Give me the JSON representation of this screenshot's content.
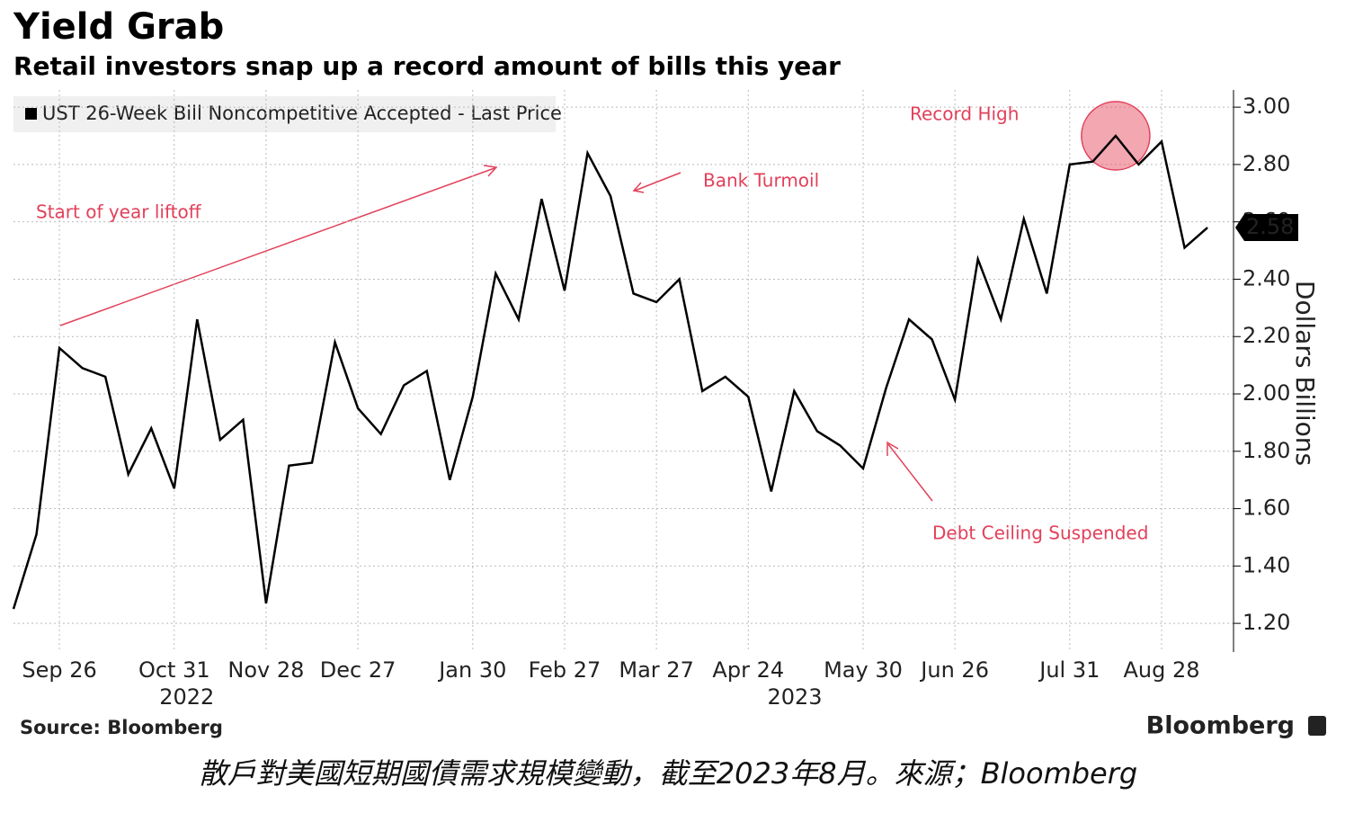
{
  "chart_data": {
    "type": "line",
    "title": "Yield Grab",
    "subtitle": "Retail investors snap up a record amount of bills this year",
    "y_axis_label": "Dollars Billions",
    "categories": [
      null,
      null,
      "Sep 26",
      null,
      null,
      null,
      null,
      "Oct 31",
      null,
      null,
      null,
      "Nov 28",
      null,
      null,
      null,
      "Dec 27",
      null,
      null,
      null,
      null,
      "Jan 30",
      null,
      null,
      null,
      "Feb 27",
      null,
      null,
      null,
      "Mar 27",
      null,
      null,
      null,
      "Apr 24",
      null,
      null,
      null,
      null,
      "May 30",
      null,
      null,
      null,
      "Jun 26",
      null,
      null,
      null,
      null,
      "Jul 31",
      null,
      null,
      null,
      "Aug 28",
      null,
      null
    ],
    "year_labels": [
      {
        "text": "2022",
        "category": "Oct 31"
      },
      {
        "text": "2023",
        "category": "May 30"
      }
    ],
    "series": [
      {
        "name": "UST 26-Week Bill Noncompetitive Accepted - Last Price",
        "color": "#000000",
        "values": [
          1.25,
          1.51,
          2.16,
          2.09,
          2.06,
          1.72,
          1.88,
          1.67,
          2.26,
          1.84,
          1.91,
          1.27,
          1.75,
          1.76,
          2.18,
          1.95,
          1.86,
          2.03,
          2.08,
          1.7,
          1.99,
          2.42,
          2.26,
          2.68,
          2.36,
          2.84,
          2.69,
          2.35,
          2.32,
          2.4,
          2.01,
          2.06,
          1.99,
          1.66,
          2.01,
          1.87,
          1.82,
          1.74,
          2.02,
          2.26,
          2.19,
          1.98,
          2.47,
          2.26,
          2.61,
          2.35,
          2.8,
          2.81,
          2.9,
          2.8,
          2.88,
          2.51,
          2.58
        ]
      }
    ],
    "last_value_label": "2.58",
    "ylim": [
      1.1,
      3.06
    ],
    "yticks": [
      {
        "value": 1.2,
        "label": "1.20"
      },
      {
        "value": 1.4,
        "label": "1.40"
      },
      {
        "value": 1.6,
        "label": "1.60"
      },
      {
        "value": 1.8,
        "label": "1.80"
      },
      {
        "value": 2.0,
        "label": "2.00"
      },
      {
        "value": 2.2,
        "label": "2.20"
      },
      {
        "value": 2.4,
        "label": "2.40"
      },
      {
        "value": 2.6,
        "label": "2.60"
      },
      {
        "value": 2.8,
        "label": "2.80"
      },
      {
        "value": 3.0,
        "label": "3.00"
      }
    ],
    "grid": true,
    "annotations": {
      "liftoff": "Start of year liftoff",
      "turmoil": "Bank Turmoil",
      "record": "Record High",
      "debt": "Debt Ceiling Suspended"
    },
    "annotation_color": "#e2405a",
    "source": "Source: Bloomberg",
    "brand": "Bloomberg"
  },
  "caption": "散戶對美國短期國債需求規模變動，截至2023年8月。來源；Bloomberg"
}
